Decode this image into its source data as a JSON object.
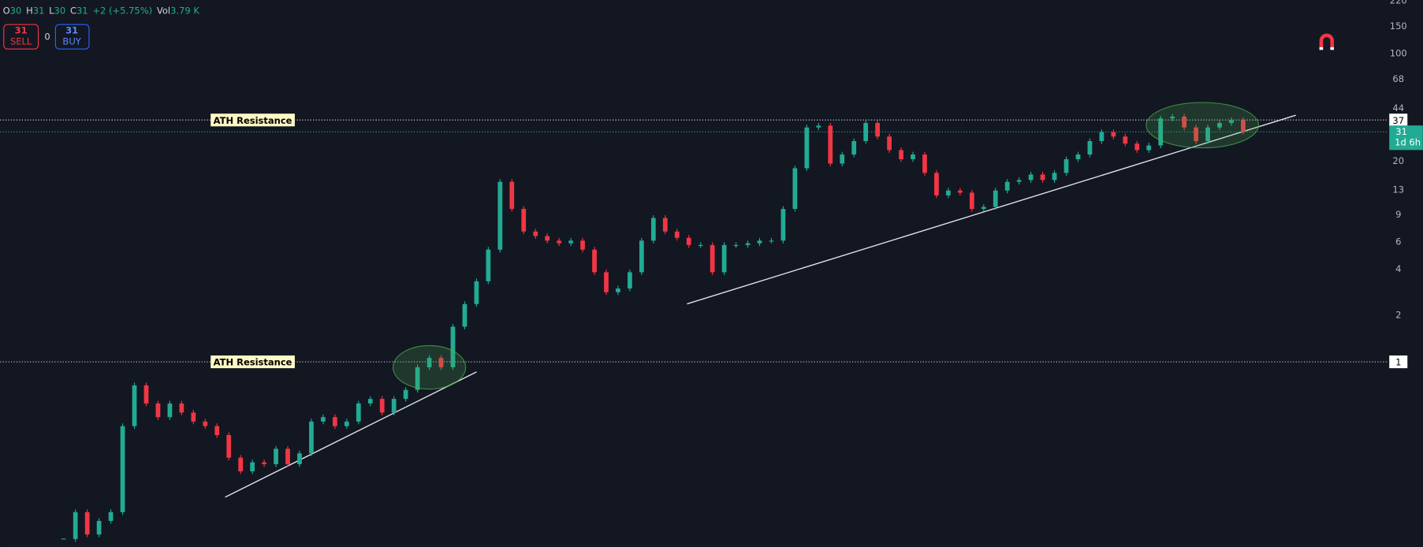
{
  "chart_data": {
    "type": "candlestick",
    "header": [
      {
        "label": "O",
        "value": 30
      },
      {
        "label": "H",
        "value": 31
      },
      {
        "label": "L",
        "value": 30
      },
      {
        "label": "C",
        "value": 31
      }
    ],
    "change": "+2 (+5.75%)",
    "volume_label": "Vol",
    "volume": "3.79 K",
    "sell": {
      "price": 31,
      "label": "SELL"
    },
    "spread": 0,
    "buy": {
      "price": 31,
      "label": "BUY"
    },
    "values": [
      0.071,
      0.106,
      0.076,
      0.093,
      0.106,
      0.383,
      0.704,
      0.537,
      0.438,
      0.537,
      0.469,
      0.41,
      0.383,
      0.335,
      0.239,
      0.195,
      0.223,
      0.217,
      0.273,
      0.217,
      0.255,
      0.41,
      0.438,
      0.383,
      0.41,
      0.537,
      0.575,
      0.469,
      0.575,
      0.658,
      0.922,
      1.06,
      0.922,
      1.69,
      2.37,
      3.33,
      5.34,
      14.7,
      9.81,
      7.0,
      6.54,
      6.11,
      5.87,
      6.11,
      5.34,
      3.81,
      2.83,
      2.99,
      3.81,
      6.11,
      8.57,
      7.0,
      6.37,
      5.72,
      5.72,
      3.81,
      5.72,
      5.72,
      5.87,
      6.11,
      6.11,
      9.81,
      18.0,
      33.1,
      34.0,
      19.3,
      22.1,
      27.0,
      35.4,
      28.9,
      23.6,
      20.6,
      22.1,
      16.8,
      12.0,
      12.9,
      12.5,
      9.81,
      10.1,
      12.9,
      14.7,
      15.1,
      16.4,
      15.1,
      16.8,
      20.6,
      22.1,
      27.0,
      30.9,
      28.9,
      26.0,
      23.6,
      25.3,
      37.9,
      38.9,
      33.1,
      27.0,
      33.1,
      35.4,
      36.9,
      31
    ],
    "up_color": "#22ab94",
    "down_color": "#f23645",
    "log_scale": true,
    "ylim": [
      0.063,
      222
    ],
    "yticks": [
      2,
      4,
      6,
      9,
      13,
      20,
      44,
      68,
      100,
      150,
      220
    ],
    "levels": [
      {
        "value": 37,
        "annotation": "ATH Resistance"
      },
      {
        "value": 1,
        "annotation": "ATH Resistance"
      }
    ],
    "last_price": {
      "value": 31,
      "countdown": "1d 6h"
    }
  }
}
